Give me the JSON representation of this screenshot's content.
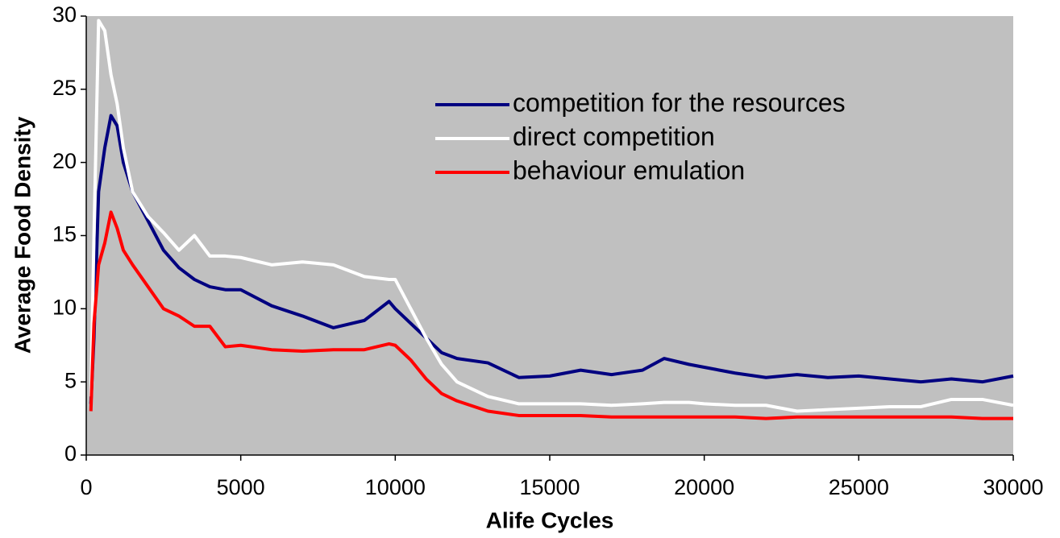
{
  "chart_data": {
    "type": "line",
    "xlabel": "Alife Cycles",
    "ylabel": "Average Food Density",
    "x": [
      150,
      250,
      400,
      600,
      800,
      1000,
      1200,
      1500,
      2000,
      2500,
      3000,
      3500,
      4000,
      4500,
      5000,
      6000,
      7000,
      8000,
      9000,
      9800,
      10000,
      10500,
      11000,
      11500,
      12000,
      13000,
      14000,
      15000,
      16000,
      17000,
      18000,
      18700,
      19500,
      20000,
      21000,
      22000,
      23000,
      24000,
      25000,
      26000,
      27000,
      28000,
      29000,
      30000
    ],
    "series": [
      {
        "name": "competition for the resources",
        "color": "#000080",
        "values": [
          3.5,
          8,
          18,
          21,
          23.2,
          22.5,
          20,
          18,
          16,
          14,
          12.8,
          12,
          11.5,
          11.3,
          11.3,
          10.2,
          9.5,
          8.7,
          9.2,
          10.5,
          10,
          9,
          8,
          7,
          6.6,
          6.3,
          5.3,
          5.4,
          5.8,
          5.5,
          5.8,
          6.6,
          6.2,
          6.0,
          5.6,
          5.3,
          5.5,
          5.3,
          5.4,
          5.2,
          5.0,
          5.2,
          5.0,
          5.4
        ]
      },
      {
        "name": "direct competition",
        "color": "#ffffff",
        "values": [
          4,
          15,
          29.7,
          29,
          26,
          24,
          21,
          18,
          16.3,
          15.2,
          14,
          15,
          13.6,
          13.6,
          13.5,
          13,
          13.2,
          13,
          12.2,
          12,
          12,
          10,
          8,
          6.2,
          5,
          4,
          3.5,
          3.5,
          3.5,
          3.4,
          3.5,
          3.6,
          3.6,
          3.5,
          3.4,
          3.4,
          3.0,
          3.1,
          3.2,
          3.3,
          3.3,
          3.8,
          3.8,
          3.4
        ]
      },
      {
        "name": "behaviour emulation",
        "color": "#ff0000",
        "values": [
          3,
          9,
          13,
          14.5,
          16.6,
          15.5,
          14,
          13,
          11.5,
          10,
          9.5,
          8.8,
          8.8,
          7.4,
          7.5,
          7.2,
          7.1,
          7.2,
          7.2,
          7.6,
          7.5,
          6.5,
          5.2,
          4.2,
          3.7,
          3.0,
          2.7,
          2.7,
          2.7,
          2.6,
          2.6,
          2.6,
          2.6,
          2.6,
          2.6,
          2.5,
          2.6,
          2.6,
          2.6,
          2.6,
          2.6,
          2.6,
          2.5,
          2.5
        ]
      }
    ],
    "xlim": [
      0,
      30000
    ],
    "xticks": [
      0,
      5000,
      10000,
      15000,
      20000,
      25000,
      30000
    ],
    "ylim": [
      0,
      30
    ],
    "yticks": [
      0,
      5,
      10,
      15,
      20,
      25,
      30
    ],
    "grid": false,
    "legend": "upper right",
    "background": "#c0c0c0"
  }
}
